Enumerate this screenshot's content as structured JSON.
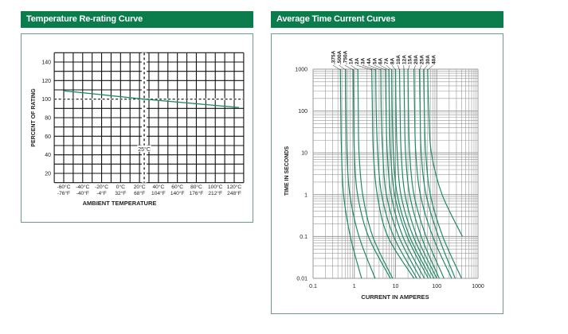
{
  "panels": {
    "left_title": "Temperature Re-rating Curve",
    "right_title": "Average Time Current Curves"
  },
  "colors": {
    "header": "#0b7c4c",
    "curve": "#1f8a68",
    "grid_left": "#111111",
    "grid_right": "#9a9a9a"
  },
  "chart_data": [
    {
      "type": "line",
      "ylabel": "PERCENT OF RATING",
      "xlabel": "AMBIENT TEMPERATURE",
      "xlim": [
        -70,
        130
      ],
      "ylim": [
        10,
        150
      ],
      "grid": true,
      "yticks": [
        "20",
        "40",
        "60",
        "80",
        "100",
        "120",
        "140"
      ],
      "ytick_values": [
        20,
        40,
        60,
        80,
        100,
        120,
        140
      ],
      "xticks": [
        {
          "c": -60,
          "label_c": "-60°C",
          "label_f": "-76°F"
        },
        {
          "c": -40,
          "label_c": "-40°C",
          "label_f": "-40°F"
        },
        {
          "c": -20,
          "label_c": "-20°C",
          "label_f": "-4°F"
        },
        {
          "c": 0,
          "label_c": "0°C",
          "label_f": "32°F"
        },
        {
          "c": 20,
          "label_c": "20°C",
          "label_f": "68°F"
        },
        {
          "c": 40,
          "label_c": "40°C",
          "label_f": "104°F"
        },
        {
          "c": 60,
          "label_c": "60°C",
          "label_f": "140°F"
        },
        {
          "c": 80,
          "label_c": "80°C",
          "label_f": "176°F"
        },
        {
          "c": 100,
          "label_c": "100°C",
          "label_f": "212°F"
        },
        {
          "c": 120,
          "label_c": "120°C",
          "label_f": "248°F"
        }
      ],
      "series": [
        {
          "x": [
            -60,
            25,
            125
          ],
          "y": [
            109,
            100,
            91
          ]
        }
      ],
      "reference_lines": {
        "horizontal_y": 100,
        "vertical_x": 25
      },
      "annotation": "25°C"
    },
    {
      "type": "line",
      "ylabel": "TIME IN SECONDS",
      "xlabel": "CURRENT IN AMPERES",
      "xscale": "log",
      "yscale": "log",
      "xlim": [
        0.1,
        1000
      ],
      "ylim": [
        0.01,
        1000
      ],
      "grid": true,
      "xticks": [
        "0.1",
        "1",
        "10",
        "100",
        "1000"
      ],
      "yticks": [
        "1000",
        "100",
        "10",
        "1",
        "0.1",
        "0.01"
      ],
      "time_points": [
        1000,
        100,
        10,
        1,
        0.1,
        0.01
      ],
      "series": [
        {
          "name": ".375A",
          "current": [
            0.46,
            0.47,
            0.49,
            0.55,
            0.8,
            1.5
          ]
        },
        {
          "name": ".500A",
          "current": [
            0.62,
            0.63,
            0.66,
            0.78,
            1.3,
            3.2
          ]
        },
        {
          "name": ".750A",
          "current": [
            0.94,
            0.96,
            1.0,
            1.2,
            2.2,
            7.5
          ]
        },
        {
          "name": "1A",
          "current": [
            1.22,
            1.25,
            1.3,
            1.6,
            2.8,
            8.5
          ]
        },
        {
          "name": "2A",
          "current": [
            2.65,
            2.75,
            2.9,
            3.6,
            6.5,
            28
          ]
        },
        {
          "name": "3A",
          "current": [
            3.3,
            3.4,
            3.7,
            4.6,
            9,
            33
          ]
        },
        {
          "name": "4A",
          "current": [
            4.4,
            4.5,
            4.9,
            6,
            12,
            40
          ]
        },
        {
          "name": "5A",
          "current": [
            5.7,
            5.9,
            6.3,
            7.8,
            15,
            50
          ]
        },
        {
          "name": "6A",
          "current": [
            6.9,
            7.1,
            7.6,
            9.5,
            19,
            62
          ]
        },
        {
          "name": "7A",
          "current": [
            8.1,
            8.3,
            8.9,
            11,
            22,
            72
          ]
        },
        {
          "name": "8A",
          "current": [
            10,
            10.3,
            11,
            13.5,
            27,
            85
          ]
        },
        {
          "name": "10A",
          "current": [
            12.5,
            12.9,
            13.7,
            17,
            33,
            100
          ]
        },
        {
          "name": "12A",
          "current": [
            16,
            16.5,
            17.5,
            22,
            42,
            115
          ]
        },
        {
          "name": "15A",
          "current": [
            20,
            20.6,
            22,
            28,
            55,
            150
          ]
        },
        {
          "name": "20A",
          "current": [
            28,
            29,
            31,
            40,
            80,
            230
          ]
        },
        {
          "name": "25A",
          "current": [
            38,
            39.5,
            42,
            55,
            110,
            280
          ]
        },
        {
          "name": "30A",
          "current": [
            48,
            50,
            54,
            70,
            140,
            400
          ]
        },
        {
          "name": "40A",
          "current": [
            60,
            64,
            74,
            135,
            420,
            null
          ]
        }
      ]
    }
  ]
}
